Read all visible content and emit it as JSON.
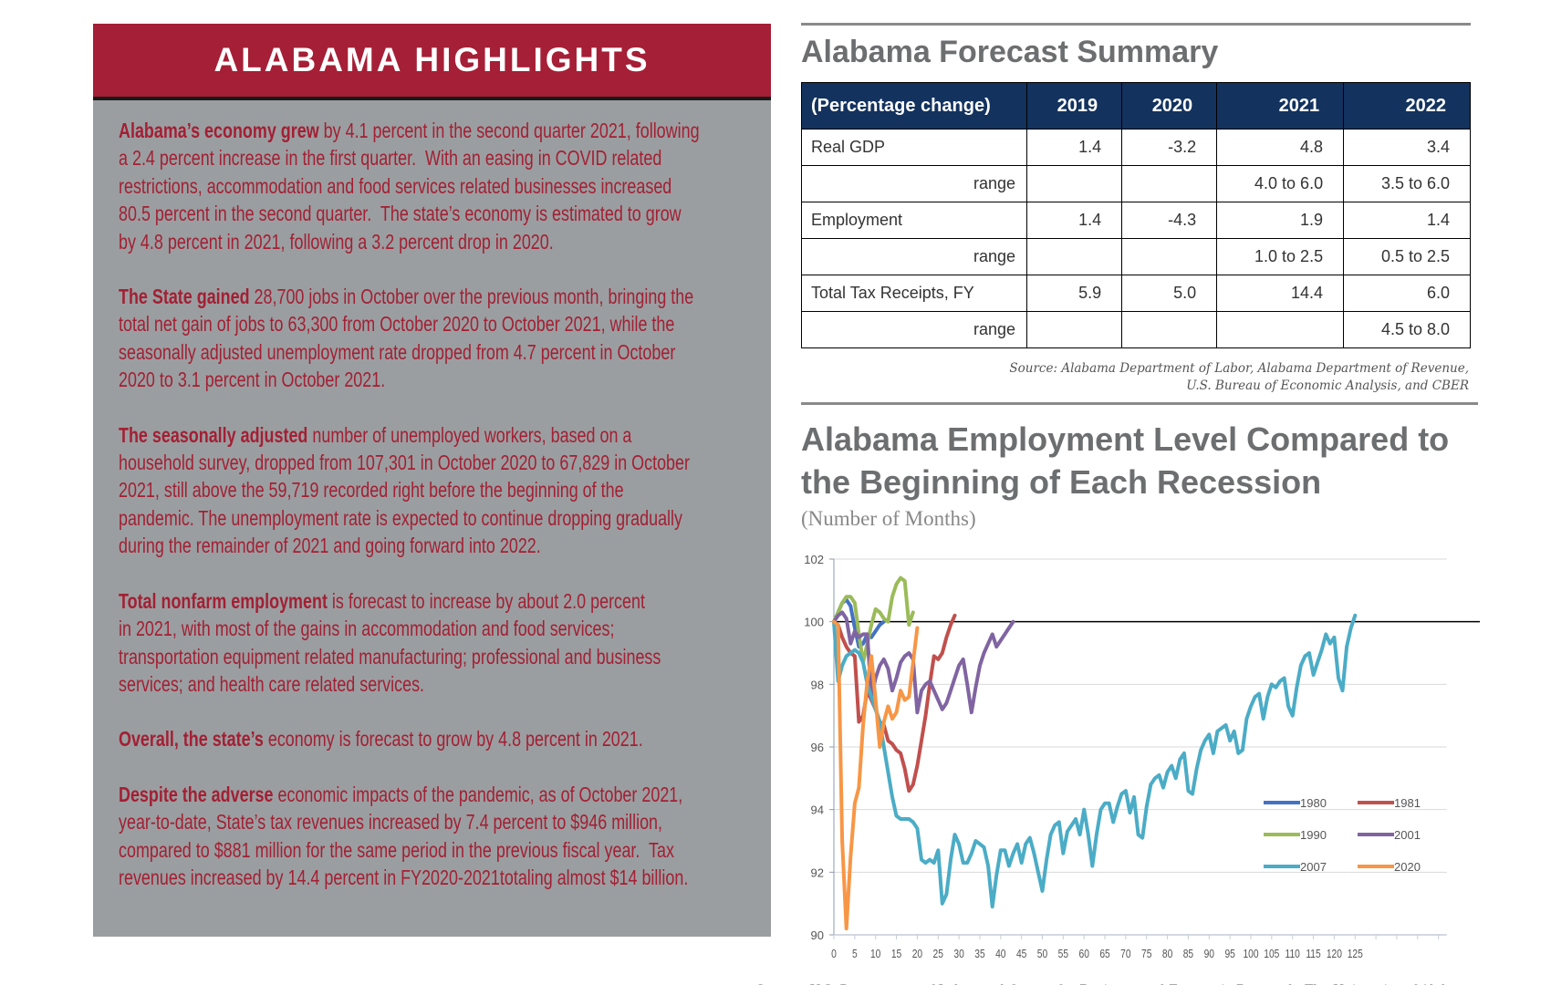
{
  "highlights": {
    "title": "ALABAMA HIGHLIGHTS",
    "paragraphs": [
      {
        "lead": "Alabama’s economy grew",
        "body": " by 4.1 percent in the second quarter 2021, following\na 2.4 percent increase in the first quarter.  With an easing in COVID related\nrestrictions, accommodation and food services related businesses increased\n80.5 percent in the second quarter.  The state’s economy is estimated to grow\nby 4.8 percent in 2021, following a 3.2 percent drop in 2020."
      },
      {
        "lead": "The State gained",
        "body": " 28,700 jobs in October over the previous month, bringing the\ntotal net gain of jobs to 63,300 from October 2020 to October 2021, while the\nseasonally adjusted unemployment rate dropped from 4.7 percent in October\n2020 to 3.1 percent in October 2021."
      },
      {
        "lead": "The seasonally adjusted",
        "body": " number of unemployed workers, based on a\nhousehold survey, dropped from 107,301 in October 2020 to 67,829 in October\n2021, still above the 59,719 recorded right before the beginning of the\npandemic. The unemployment rate is expected to continue dropping gradually\nduring the remainder of 2021 and going forward into 2022."
      },
      {
        "lead": "Total nonfarm employment",
        "body": " is forecast to increase by about 2.0 percent\nin 2021, with most of the gains in accommodation and food services;\ntransportation equipment related manufacturing; professional and business\nservices; and health care related services."
      },
      {
        "lead": "Overall, the state’s",
        "body": " economy is forecast to grow by 4.8 percent in 2021."
      },
      {
        "lead": "Despite the adverse",
        "body": " economic impacts of the pandemic, as of October 2021,\nyear-to-date, State’s tax revenues increased by 7.4 percent to $946 million,\ncompared to $881 million for the same period in the previous fiscal year.  Tax\nrevenues increased by 14.4 percent in FY2020-2021totaling almost $14 billion."
      }
    ]
  },
  "forecast": {
    "title": "Alabama Forecast Summary",
    "headers": [
      "(Percentage change)",
      "2019",
      "2020",
      "2021",
      "2022"
    ],
    "rows": [
      {
        "label": "Real GDP",
        "range": false,
        "values": [
          "1.4",
          "-3.2",
          "4.8",
          "3.4"
        ]
      },
      {
        "label": "range",
        "range": true,
        "values": [
          "",
          "",
          "4.0 to 6.0",
          "3.5 to 6.0"
        ]
      },
      {
        "label": "Employment",
        "range": false,
        "values": [
          "1.4",
          "-4.3",
          "1.9",
          "1.4"
        ]
      },
      {
        "label": "range",
        "range": true,
        "values": [
          "",
          "",
          "1.0 to 2.5",
          "0.5 to 2.5"
        ]
      },
      {
        "label": "Total Tax Receipts, FY",
        "range": false,
        "values": [
          "5.9",
          "5.0",
          "14.4",
          "6.0"
        ]
      },
      {
        "label": "range",
        "range": true,
        "values": [
          "",
          "",
          "",
          "4.5 to 8.0"
        ]
      }
    ],
    "source_line1": "Source:  Alabama Department of Labor, Alabama Department of Revenue,",
    "source_line2": "U.S. Bureau of Economic Analysis, and CBER"
  },
  "chart_data": {
    "type": "line",
    "title": "Alabama Employment Level Compared to the Beginning of Each Recession",
    "title_line1": "Alabama Employment Level Compared to",
    "title_line2": "the Beginning of Each Recession",
    "subtitle": "(Number of Months)",
    "xlabel": "",
    "ylabel": "",
    "xlim": [
      0,
      147
    ],
    "ylim": [
      90,
      102
    ],
    "yticks": [
      "90",
      "92",
      "94",
      "96",
      "98",
      "100",
      "102"
    ],
    "xticks": [
      "0",
      "5",
      "10",
      "15",
      "20",
      "25",
      "30",
      "35",
      "40",
      "45",
      "50",
      "55",
      "60",
      "65",
      "70",
      "75",
      "80",
      "85",
      "90",
      "95",
      "100",
      "105",
      "110",
      "115",
      "120",
      "125"
    ],
    "reference_line": 100,
    "grid": true,
    "legend_position": "bottom-right",
    "series": [
      {
        "name": "1980",
        "color": "#4472c4",
        "values": [
          100,
          100.3,
          100.6,
          100.7,
          100.5,
          99.8,
          99.2,
          99.3,
          99.6,
          99.5,
          99.7,
          99.9,
          100.0
        ]
      },
      {
        "name": "1981",
        "color": "#c0504d",
        "values": [
          100,
          99.9,
          99.5,
          99.2,
          99.0,
          98.9,
          96.8,
          97.0,
          97.8,
          97.5,
          97.2,
          96.8,
          96.7,
          96.2,
          96.1,
          95.9,
          95.8,
          95.3,
          94.6,
          94.8,
          95.4,
          96.2,
          97.0,
          98.0,
          98.9,
          98.8,
          99.0,
          99.5,
          99.9,
          100.2
        ]
      },
      {
        "name": "1990",
        "color": "#9bbb59",
        "values": [
          100,
          100.3,
          100.6,
          100.8,
          100.8,
          100.6,
          99.6,
          98.7,
          99.3,
          99.9,
          100.4,
          100.3,
          100.1,
          100.0,
          100.8,
          101.2,
          101.4,
          101.3,
          99.9,
          100.3
        ]
      },
      {
        "name": "2001",
        "color": "#8064a2",
        "values": [
          100,
          100.2,
          100.3,
          100.1,
          99.3,
          99.7,
          99.5,
          99.6,
          99.6,
          97.6,
          98.2,
          98.6,
          98.8,
          98.5,
          97.8,
          98.2,
          98.7,
          98.9,
          99.0,
          98.8,
          97.1,
          97.8,
          98.0,
          98.1,
          97.8,
          97.5,
          97.2,
          97.4,
          97.8,
          98.2,
          98.6,
          98.8,
          98.0,
          97.1,
          97.9,
          98.6,
          99.0,
          99.3,
          99.6,
          99.2,
          99.4,
          99.6,
          99.8,
          100.0
        ]
      },
      {
        "name": "2007",
        "color": "#4bacc6",
        "values": [
          100,
          98.1,
          98.6,
          98.9,
          99.0,
          99.1,
          99.0,
          98.7,
          98.0,
          97.6,
          97.2,
          96.8,
          96.0,
          95.2,
          94.4,
          93.8,
          93.7,
          93.7,
          93.7,
          93.6,
          93.4,
          92.4,
          92.3,
          92.4,
          92.3,
          92.7,
          91.0,
          91.3,
          92.4,
          93.2,
          92.9,
          92.3,
          92.3,
          92.6,
          93.0,
          92.9,
          92.8,
          92.2,
          90.9,
          91.9,
          92.7,
          92.7,
          92.2,
          92.6,
          92.9,
          92.3,
          92.9,
          93.1,
          92.6,
          92.0,
          91.4,
          92.4,
          93.2,
          93.5,
          93.6,
          92.6,
          93.3,
          93.5,
          93.7,
          93.2,
          94.0,
          93.2,
          92.2,
          93.2,
          94.0,
          94.2,
          94.2,
          93.6,
          94.1,
          94.5,
          94.6,
          93.9,
          94.4,
          93.2,
          93.1,
          94.1,
          94.8,
          95.0,
          95.1,
          94.7,
          95.2,
          95.4,
          95.0,
          95.6,
          95.8,
          94.6,
          94.5,
          95.3,
          95.9,
          96.2,
          96.4,
          95.8,
          96.5,
          96.6,
          96.7,
          96.2,
          96.5,
          95.8,
          95.9,
          96.9,
          97.3,
          97.6,
          97.7,
          96.9,
          97.6,
          98.0,
          97.9,
          98.1,
          98.2,
          97.3,
          97.0,
          97.9,
          98.6,
          98.9,
          99.0,
          98.3,
          98.7,
          99.1,
          99.6,
          99.3,
          99.5,
          98.2,
          97.8,
          99.2,
          99.8,
          100.2
        ]
      },
      {
        "name": "2020",
        "color": "#f79646",
        "values": [
          100,
          99.9,
          93.0,
          90.2,
          92.5,
          94.2,
          94.7,
          96.7,
          98.1,
          98.9,
          97.5,
          96.0,
          96.8,
          97.3,
          96.9,
          97.1,
          97.8,
          97.5,
          97.6,
          98.7,
          99.8
        ]
      }
    ],
    "source": "Source: U.S. Department of Labor and Center for Business and Economic Research, The University of Alabama"
  }
}
